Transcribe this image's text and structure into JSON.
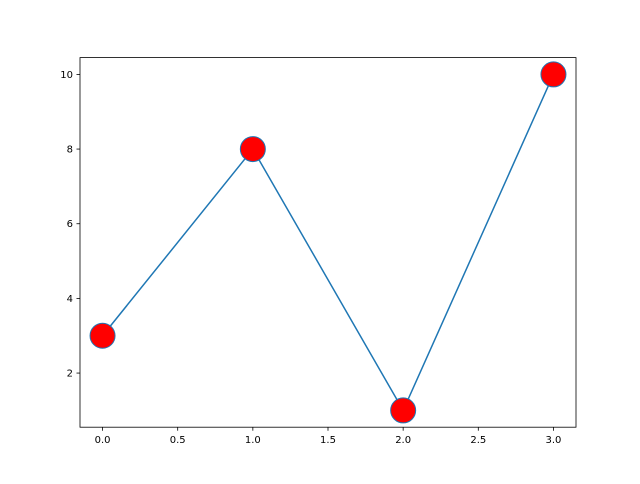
{
  "chart_data": {
    "type": "line",
    "x": [
      0,
      1,
      2,
      3
    ],
    "series": [
      {
        "values": [
          3,
          8,
          1,
          10
        ],
        "line_color": "#1f77b4",
        "marker": "circle",
        "marker_face_color": "#ff0000",
        "marker_edge_color": "#1f77b4"
      }
    ],
    "xlim": [
      -0.15,
      3.15
    ],
    "ylim": [
      0.55,
      10.45
    ],
    "xticks": [
      "0.0",
      "0.5",
      "1.0",
      "1.5",
      "2.0",
      "2.5",
      "3.0"
    ],
    "yticks": [
      "2",
      "4",
      "6",
      "8",
      "10"
    ],
    "title": "",
    "xlabel": "",
    "ylabel": "",
    "grid": false
  }
}
